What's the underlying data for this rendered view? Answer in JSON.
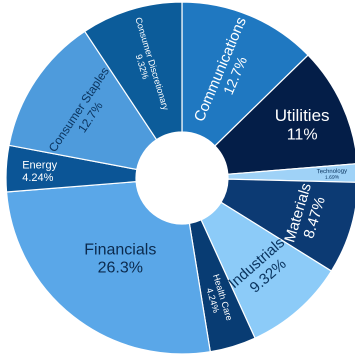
{
  "chart_data": {
    "type": "pie",
    "donut": true,
    "labels": [
      "Communications",
      "Utilities",
      "Technology",
      "Materials",
      "Industrials",
      "Health Care",
      "Financials",
      "Energy",
      "Consumer Staples",
      "Consumer Discretionary"
    ],
    "value_labels": [
      "12.7%",
      "11%",
      "1.69%",
      "8.47%",
      "9.32%",
      "4.24%",
      "26.3%",
      "4.24%",
      "12.7%",
      "9.32%"
    ],
    "values": [
      12.7,
      11.0,
      1.69,
      8.47,
      9.32,
      4.24,
      26.3,
      4.24,
      12.7,
      9.32
    ],
    "colors": [
      "#1f78c1",
      "#041e48",
      "#9fd2f7",
      "#0c3a73",
      "#8ccbf8",
      "#083c73",
      "#5aa7e8",
      "#0b5596",
      "#4e9bdc",
      "#0c5c9a"
    ],
    "label_colors": [
      "#ffffff",
      "#ffffff",
      "#0b3560",
      "#ffffff",
      "#0b3560",
      "#ffffff",
      "#0b2a4d",
      "#ffffff",
      "#0b3560",
      "#ffffff"
    ],
    "start_angle_deg": 0,
    "direction": "clockwise"
  }
}
